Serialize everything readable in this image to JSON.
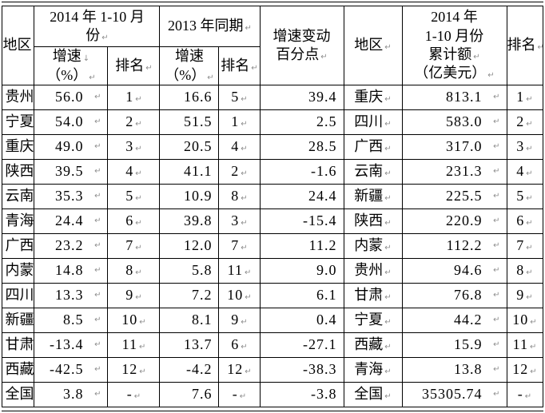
{
  "colors": {
    "text": "#000000",
    "border": "#000000",
    "format_mark": "#8e8e8e",
    "background": "#ffffff"
  },
  "marks": {
    "eoc": "↵",
    "wrap": "↓"
  },
  "table": {
    "header": {
      "region_left": "地区",
      "period2014_line1": "2014 年 1-10 月",
      "period2014_line2": "份",
      "period2013": "2013 年同期",
      "growth2014_line1": "增速",
      "growth2014_line2": "（%）",
      "rank_2014": "排名",
      "growth2013_line1": "增速",
      "growth2013_line2": "（%）",
      "rank_2013": "排名",
      "change_line1": "增速变动",
      "change_line2": "百分点",
      "region_right": "地区",
      "amount_line1": "2014 年",
      "amount_line2": "1-10 月份",
      "amount_line3": "累计额",
      "amount_line4": "（亿美元）",
      "rank_right": "排名"
    },
    "columns": [
      {
        "key": "region-left",
        "style": "region-l",
        "mark": "inline"
      },
      {
        "key": "growth-2014",
        "style": "nummark",
        "mark": "abs"
      },
      {
        "key": "rank-2014",
        "style": "rank",
        "mark": "inline"
      },
      {
        "key": "growth-2013",
        "style": "num",
        "mark": "none"
      },
      {
        "key": "rank-2013",
        "style": "rank",
        "mark": "inline"
      },
      {
        "key": "change",
        "style": "num",
        "mark": "none"
      },
      {
        "key": "region-right",
        "style": "region-c",
        "mark": "inline"
      },
      {
        "key": "amount",
        "style": "nummark",
        "mark": "abs"
      },
      {
        "key": "rank-right",
        "style": "rank",
        "mark": "inline"
      }
    ],
    "rows": [
      [
        "贵州",
        "56.0",
        "1",
        "16.6",
        "5",
        "39.4",
        "重庆",
        "813.1",
        "1"
      ],
      [
        "宁夏",
        "54.0",
        "2",
        "51.5",
        "1",
        "2.5",
        "四川",
        "583.0",
        "2"
      ],
      [
        "重庆",
        "49.0",
        "3",
        "20.5",
        "4",
        "28.5",
        "广西",
        "317.0",
        "3"
      ],
      [
        "陕西",
        "39.5",
        "4",
        "41.1",
        "2",
        "-1.6",
        "云南",
        "231.3",
        "4"
      ],
      [
        "云南",
        "35.3",
        "5",
        "10.9",
        "8",
        "24.4",
        "新疆",
        "225.5",
        "5"
      ],
      [
        "青海",
        "24.4",
        "6",
        "39.8",
        "3",
        "-15.4",
        "陕西",
        "220.9",
        "6"
      ],
      [
        "广西",
        "23.2",
        "7",
        "12.0",
        "7",
        "11.2",
        "内蒙",
        "112.2",
        "7"
      ],
      [
        "内蒙",
        "14.8",
        "8",
        "5.8",
        "11",
        "9.0",
        "贵州",
        "94.6",
        "8"
      ],
      [
        "四川",
        "13.3",
        "9",
        "7.2",
        "10",
        "6.1",
        "甘肃",
        "76.8",
        "9"
      ],
      [
        "新疆",
        "8.5",
        "10",
        "8.1",
        "9",
        "0.4",
        "宁夏",
        "44.2",
        "10"
      ],
      [
        "甘肃",
        "-13.4",
        "11",
        "13.7",
        "6",
        "-27.1",
        "西藏",
        "15.9",
        "11"
      ],
      [
        "西藏",
        "-42.5",
        "12",
        "-4.2",
        "12",
        "-38.3",
        "青海",
        "13.8",
        "12"
      ],
      [
        "全国",
        "3.8",
        "-",
        "7.6",
        "-",
        "-3.8",
        "全国",
        "35305.74",
        "-"
      ]
    ]
  }
}
